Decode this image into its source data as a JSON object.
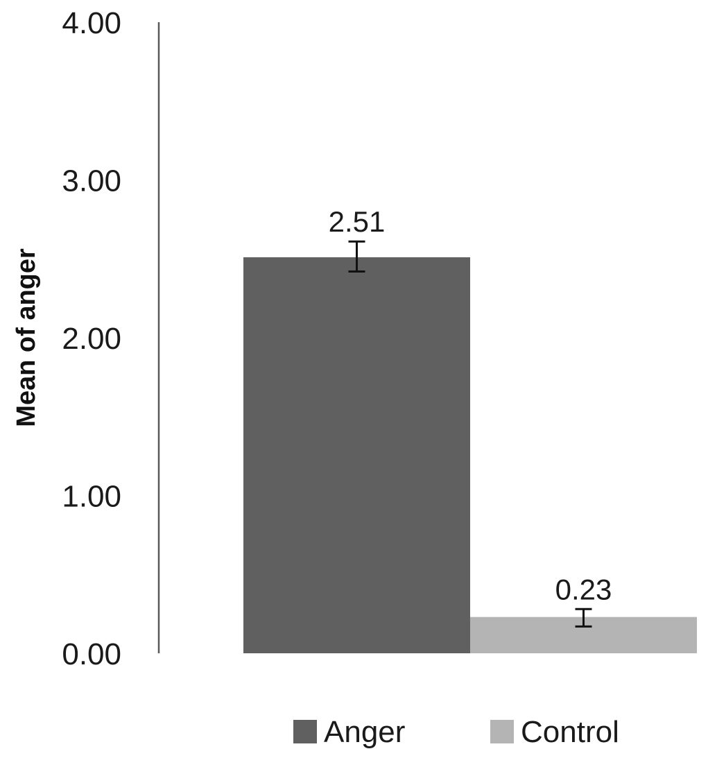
{
  "chart_data": {
    "type": "bar",
    "categories": [
      "Anger",
      "Control"
    ],
    "values": [
      2.51,
      0.23
    ],
    "data_labels": [
      "2.51",
      "0.23"
    ],
    "error_bars": [
      {
        "low": 2.42,
        "high": 2.61
      },
      {
        "low": 0.17,
        "high": 0.28
      }
    ],
    "ylabel": "Mean of anger",
    "ylim": [
      0,
      4
    ],
    "yticks": [
      {
        "value": 0,
        "label": "0.00"
      },
      {
        "value": 1,
        "label": "1.00"
      },
      {
        "value": 2,
        "label": "2.00"
      },
      {
        "value": 3,
        "label": "3.00"
      },
      {
        "value": 4,
        "label": "4.00"
      }
    ],
    "legend": [
      {
        "label": "Anger",
        "color": "#606060"
      },
      {
        "label": "Control",
        "color": "#b4b4b4"
      }
    ],
    "legend_position": "bottom",
    "grid": false
  }
}
